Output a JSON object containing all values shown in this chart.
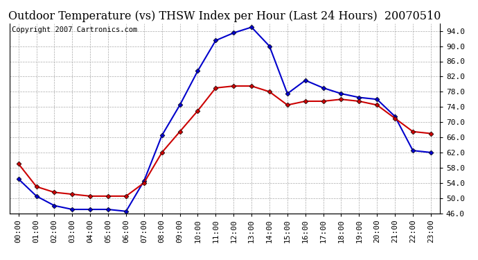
{
  "title": "Outdoor Temperature (vs) THSW Index per Hour (Last 24 Hours)  20070510",
  "copyright_text": "Copyright 2007 Cartronics.com",
  "hours": [
    "00:00",
    "01:00",
    "02:00",
    "03:00",
    "04:00",
    "05:00",
    "06:00",
    "07:00",
    "08:00",
    "09:00",
    "10:00",
    "11:00",
    "12:00",
    "13:00",
    "14:00",
    "15:00",
    "16:00",
    "17:00",
    "18:00",
    "19:00",
    "20:00",
    "21:00",
    "22:00",
    "23:00"
  ],
  "temp_red": [
    59.0,
    53.0,
    51.5,
    51.0,
    50.5,
    50.5,
    50.5,
    54.0,
    62.0,
    67.5,
    73.0,
    79.0,
    79.5,
    79.5,
    78.0,
    74.5,
    75.5,
    75.5,
    76.0,
    75.5,
    74.5,
    71.0,
    67.5,
    67.0
  ],
  "thsw_blue": [
    55.0,
    50.5,
    48.0,
    47.0,
    47.0,
    47.0,
    46.5,
    54.5,
    66.5,
    74.5,
    83.5,
    91.5,
    93.5,
    95.0,
    90.0,
    77.5,
    81.0,
    79.0,
    77.5,
    76.5,
    76.0,
    71.5,
    62.5,
    62.0
  ],
  "ylim": [
    46.0,
    96.0
  ],
  "yticks": [
    46.0,
    50.0,
    54.0,
    58.0,
    62.0,
    66.0,
    70.0,
    74.0,
    78.0,
    82.0,
    86.0,
    90.0,
    94.0
  ],
  "bg_color": "#ffffff",
  "grid_color": "#aaaaaa",
  "red_color": "#cc0000",
  "blue_color": "#0000cc",
  "title_fontsize": 11.5,
  "tick_fontsize": 8,
  "copyright_fontsize": 7.5
}
